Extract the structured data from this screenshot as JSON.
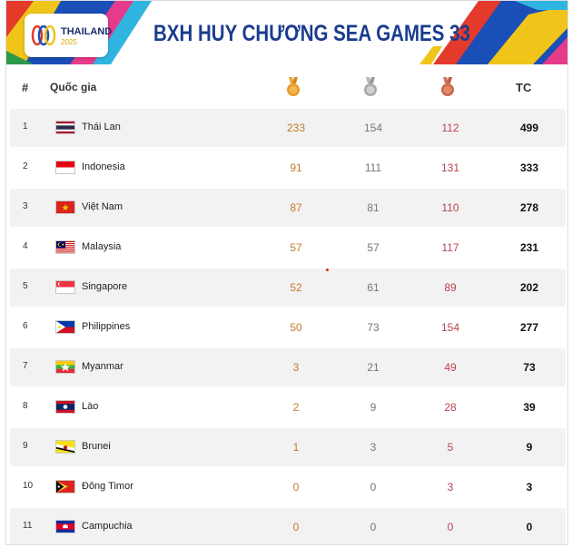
{
  "banner": {
    "title": "BXH HUY CHƯƠNG SEA GAMES 33",
    "logo_text": "THAILAND",
    "logo_year": "2025"
  },
  "header": {
    "rank": "#",
    "country": "Quốc gia",
    "gold_icon": "gold-medal-icon",
    "silver_icon": "silver-medal-icon",
    "bronze_icon": "bronze-medal-icon",
    "total": "TC"
  },
  "colors": {
    "title": "#1a3c8f",
    "gold": "#c07a2a",
    "silver": "#777777",
    "bronze": "#b8424f"
  },
  "rows": [
    {
      "rank": "1",
      "country": "Thái Lan",
      "gold": "233",
      "silver": "154",
      "bronze": "112",
      "total": "499",
      "flag": "thailand-flag-icon"
    },
    {
      "rank": "2",
      "country": "Indonesia",
      "gold": "91",
      "silver": "111",
      "bronze": "131",
      "total": "333",
      "flag": "indonesia-flag-icon"
    },
    {
      "rank": "3",
      "country": "Việt Nam",
      "gold": "87",
      "silver": "81",
      "bronze": "110",
      "total": "278",
      "flag": "vietnam-flag-icon"
    },
    {
      "rank": "4",
      "country": "Malaysia",
      "gold": "57",
      "silver": "57",
      "bronze": "117",
      "total": "231",
      "flag": "malaysia-flag-icon"
    },
    {
      "rank": "5",
      "country": "Singapore",
      "gold": "52",
      "silver": "61",
      "bronze": "89",
      "total": "202",
      "flag": "singapore-flag-icon"
    },
    {
      "rank": "6",
      "country": "Philippines",
      "gold": "50",
      "silver": "73",
      "bronze": "154",
      "total": "277",
      "flag": "philippines-flag-icon"
    },
    {
      "rank": "7",
      "country": "Myanmar",
      "gold": "3",
      "silver": "21",
      "bronze": "49",
      "total": "73",
      "flag": "myanmar-flag-icon"
    },
    {
      "rank": "8",
      "country": "Lào",
      "gold": "2",
      "silver": "9",
      "bronze": "28",
      "total": "39",
      "flag": "laos-flag-icon"
    },
    {
      "rank": "9",
      "country": "Brunei",
      "gold": "1",
      "silver": "3",
      "bronze": "5",
      "total": "9",
      "flag": "brunei-flag-icon"
    },
    {
      "rank": "10",
      "country": "Đông Timor",
      "gold": "0",
      "silver": "0",
      "bronze": "3",
      "total": "3",
      "flag": "timor-leste-flag-icon"
    },
    {
      "rank": "11",
      "country": "Campuchia",
      "gold": "0",
      "silver": "0",
      "bronze": "0",
      "total": "0",
      "flag": "cambodia-flag-icon"
    }
  ]
}
